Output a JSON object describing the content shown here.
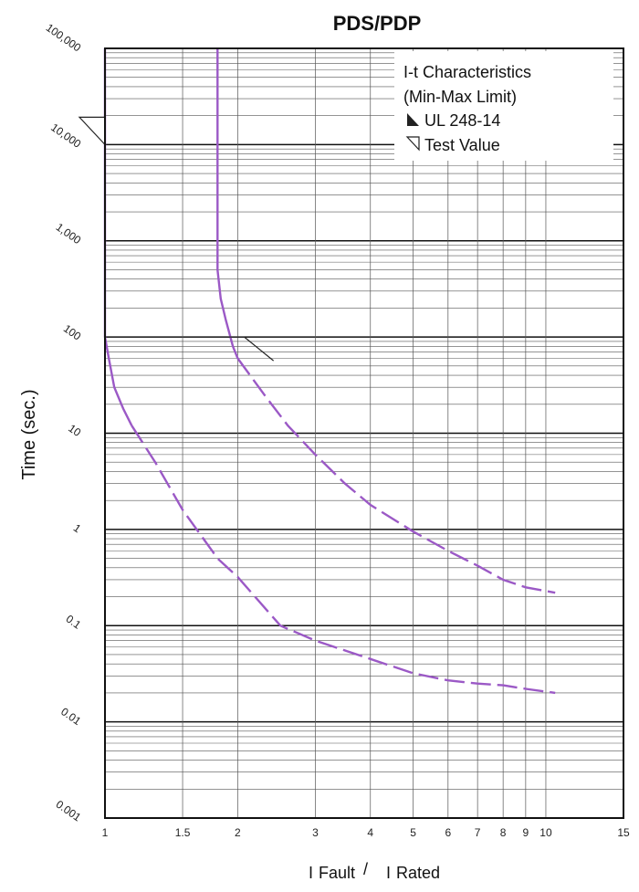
{
  "chart_data": {
    "type": "line",
    "title": "PDS/PDP",
    "ylabel": "Time (sec.)",
    "xlabel_main": "I",
    "xlabel_sub_1": "Fault",
    "xlabel_separator": "/",
    "xlabel_main_2": "I",
    "xlabel_sub_2": "Rated",
    "x_scale": "log",
    "y_scale": "log",
    "xlim": [
      1,
      15
    ],
    "ylim": [
      0.001,
      100000
    ],
    "x_ticks": [
      1,
      1.5,
      2,
      3,
      4,
      5,
      6,
      7,
      8,
      9,
      10,
      15
    ],
    "x_tick_labels": [
      "1",
      "1.5",
      "2",
      "3",
      "4",
      "5",
      "6",
      "7",
      "8",
      "9",
      "10",
      "15"
    ],
    "y_ticks": [
      0.001,
      0.01,
      0.1,
      1,
      10,
      100,
      1000,
      10000,
      100000
    ],
    "y_tick_labels": [
      "0.001",
      "0.01",
      "0.1",
      "1",
      "10",
      "100",
      "1,000",
      "10,000",
      "100,000"
    ],
    "grid": true,
    "legend": {
      "position": "top-right",
      "title_line1": "I-t Characteristics",
      "title_line2": "(Min-Max Limit)",
      "entries": [
        {
          "label": "UL 248-14",
          "marker": "filled-triangle"
        },
        {
          "label": "Test Value",
          "marker": "open-triangle"
        }
      ]
    },
    "curve_color": "#9b59c6",
    "series": [
      {
        "solid": [
          [
            1.0,
            100000
          ],
          [
            1.0,
            100
          ],
          [
            1.02,
            60
          ],
          [
            1.05,
            30
          ],
          [
            1.1,
            18
          ],
          [
            1.15,
            12
          ]
        ],
        "dashed": [
          [
            1.15,
            12
          ],
          [
            1.3,
            5
          ],
          [
            1.5,
            1.6
          ],
          [
            1.8,
            0.5
          ],
          [
            2.0,
            0.32
          ],
          [
            2.5,
            0.1
          ],
          [
            3.0,
            0.07
          ],
          [
            4.0,
            0.045
          ],
          [
            5.0,
            0.032
          ],
          [
            6.0,
            0.027
          ],
          [
            7.0,
            0.025
          ],
          [
            8.0,
            0.024
          ],
          [
            9.0,
            0.022
          ],
          [
            10.5,
            0.02
          ]
        ]
      },
      {
        "solid": [
          [
            1.8,
            100000
          ],
          [
            1.8,
            500
          ],
          [
            1.83,
            250
          ],
          [
            1.88,
            150
          ],
          [
            1.95,
            80
          ],
          [
            2.0,
            60
          ]
        ],
        "dashed": [
          [
            2.0,
            60
          ],
          [
            2.3,
            25
          ],
          [
            2.6,
            12
          ],
          [
            3.0,
            6
          ],
          [
            3.5,
            3
          ],
          [
            4.0,
            1.8
          ],
          [
            5.0,
            0.95
          ],
          [
            6.0,
            0.6
          ],
          [
            7.0,
            0.42
          ],
          [
            8.0,
            0.3
          ],
          [
            9.0,
            0.25
          ],
          [
            10.5,
            0.22
          ]
        ]
      }
    ],
    "markers": [
      {
        "type": "ul-248-14",
        "x": 1.0,
        "y": 10000
      },
      {
        "type": "test-value",
        "x": 1.9,
        "y": 100
      }
    ]
  }
}
